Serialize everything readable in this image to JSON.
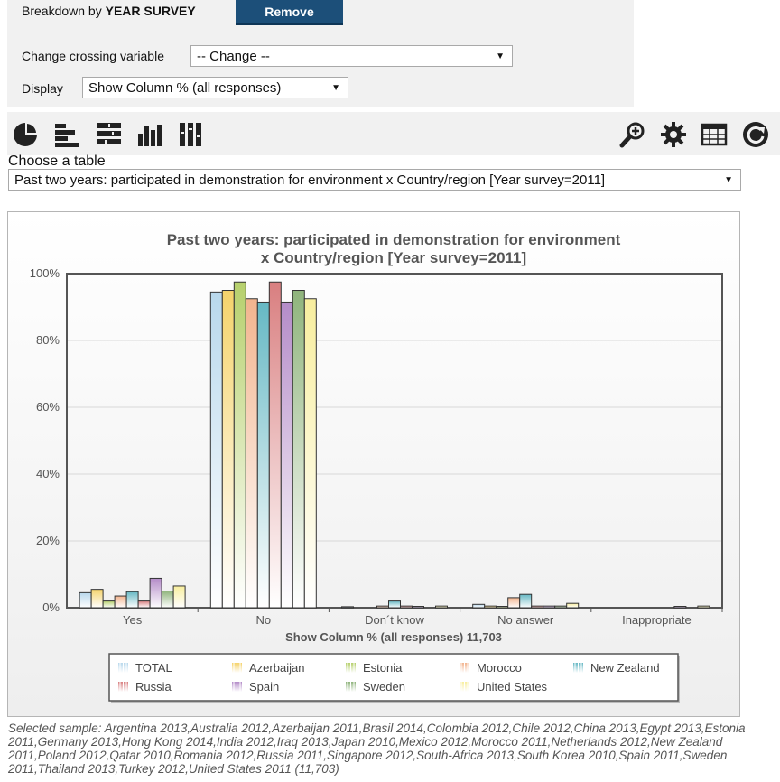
{
  "breakdown": {
    "prefix": "Breakdown by",
    "variable": "YEAR SURVEY",
    "remove_label": "Remove"
  },
  "crossing": {
    "label": "Change crossing variable",
    "value": "-- Change --"
  },
  "display": {
    "label": "Display",
    "value": "Show Column % (all responses)"
  },
  "toolbar": {
    "left_icons": [
      "pie-chart-icon",
      "bar-chart-icon",
      "stacked-bar-chart-icon",
      "column-chart-icon",
      "stacked-column-chart-icon"
    ],
    "right_icons": [
      "zoom-icon",
      "settings-gear-icon",
      "table-view-icon",
      "refresh-icon"
    ]
  },
  "choose_table": {
    "label": "Choose a table",
    "value": "Past two years: participated in demonstration for environment x Country/region [Year survey=2011]"
  },
  "chart_data": {
    "type": "bar",
    "title": "Past two years: participated in demonstration for environment x Country/region [Year survey=2011]",
    "xlabel": "Show Column % (all responses) 11,703",
    "ylabel": "",
    "ylim": [
      0,
      100
    ],
    "yticks": [
      "0%",
      "20%",
      "40%",
      "60%",
      "80%",
      "100%"
    ],
    "grid": true,
    "legend_position": "bottom",
    "categories": [
      "Yes",
      "No",
      "Don´t know",
      "No answer",
      "Inappropriate"
    ],
    "series": [
      {
        "name": "TOTAL",
        "color": "#b8d8ec",
        "values": [
          4.5,
          94.5,
          0.3,
          1.0,
          0
        ]
      },
      {
        "name": "Azerbaijan",
        "color": "#f5d36b",
        "values": [
          5.5,
          95.0,
          0,
          0.5,
          0
        ]
      },
      {
        "name": "Estonia",
        "color": "#b6d06c",
        "values": [
          2.0,
          97.5,
          0,
          0.4,
          0
        ]
      },
      {
        "name": "Morocco",
        "color": "#f2b48e",
        "values": [
          3.5,
          92.5,
          0.5,
          3.0,
          0
        ]
      },
      {
        "name": "New Zealand",
        "color": "#66b8c4",
        "values": [
          4.8,
          91.5,
          2.0,
          4.0,
          0
        ]
      },
      {
        "name": "Russia",
        "color": "#d97f80",
        "values": [
          2.0,
          97.5,
          0.5,
          0.5,
          0
        ]
      },
      {
        "name": "Spain",
        "color": "#b48cc8",
        "values": [
          8.8,
          91.5,
          0.4,
          0.5,
          0.4
        ]
      },
      {
        "name": "Sweden",
        "color": "#8fb47c",
        "values": [
          5.0,
          95.0,
          0,
          0.5,
          0
        ]
      },
      {
        "name": "United States",
        "color": "#f8ee9e",
        "values": [
          6.5,
          92.5,
          0.5,
          1.3,
          0.5
        ]
      }
    ]
  },
  "footer": "Selected sample: Argentina 2013,Australia 2012,Azerbaijan 2011,Brasil 2014,Colombia 2012,Chile 2012,China 2013,Egypt 2013,Estonia 2011,Germany 2013,Hong Kong 2014,India 2012,Iraq 2013,Japan 2010,Mexico 2012,Morocco 2011,Netherlands 2012,New Zealand 2011,Poland 2012,Qatar 2010,Romania 2012,Russia 2011,Singapore 2012,South-Africa 2013,South Korea 2010,Spain 2011,Sweden 2011,Thailand 2013,Turkey 2012,United States 2011 (11,703)"
}
